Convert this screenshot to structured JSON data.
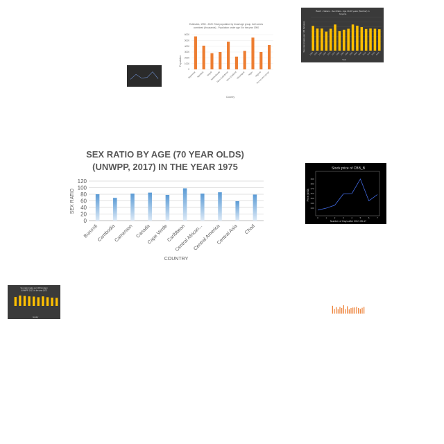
{
  "charts": [
    {
      "type": "bar",
      "title_line1": "SEX RATIO BY AGE (70 YEAR OLDS)",
      "title_line2": "(UNWPP, 2017) IN THE YEAR 1975",
      "xlabel": "COUNTRY",
      "ylabel": "SEX RATIO",
      "ylim": [
        0,
        120
      ],
      "yticks": [
        "0",
        "20",
        "40",
        "60",
        "80",
        "100",
        "120"
      ],
      "categories": [
        "Burundi",
        "Cambodia",
        "Cameroon",
        "Canada",
        "Cape Verde",
        "Caribbean",
        "Central African...",
        "Central America",
        "Central Asia",
        "Chad"
      ],
      "values": [
        80,
        69,
        82,
        85,
        78,
        98,
        82,
        86,
        59,
        79
      ],
      "color": "#5b9bd5"
    },
    {
      "type": "bar",
      "title_line1": "Estimates, 1950 - 2020: Total population by broad age group, both sexes",
      "title_line2": "combined (thousands) - Population under age 5 in the year 1950",
      "xlabel": "Country",
      "ylabel": "Population",
      "ylim": [
        0,
        6000
      ],
      "yticks": [
        "0",
        "1000",
        "2000",
        "3000",
        "4000",
        "5000",
        "6000"
      ],
      "categories": [
        "Myanmar",
        "Namibia",
        "Nepal",
        "Netherlands",
        "New Caledonia",
        "New Zealand",
        "Nicaragua",
        "Niger",
        "Nigeria",
        "No income group"
      ],
      "values": [
        5700,
        4100,
        2800,
        3000,
        4800,
        2200,
        3200,
        5500,
        3000,
        4200
      ],
      "color": "#ed7d31"
    },
    {
      "type": "bar",
      "title_line1": "Brazil - Nations - Sex Ratio - Age 10-40 years (Number) in",
      "title_line2": "Guyana",
      "xlabel": "Year",
      "ylabel": "Sex ratio (males per 100 females)",
      "ylim": [
        0,
        140
      ],
      "yticks": [],
      "categories": [
        "1950",
        "1955",
        "1960",
        "1965",
        "1970",
        "1975",
        "1980",
        "1985",
        "1990",
        "1995",
        "2000",
        "2005",
        "2010",
        "2015",
        "2020",
        "2025"
      ],
      "values": [
        104,
        93,
        93,
        80,
        92,
        110,
        82,
        88,
        92,
        110,
        105,
        99,
        91,
        93,
        92,
        90
      ],
      "color": "#ffc000"
    },
    {
      "type": "line",
      "title_line1": "Stock price of CBB_B",
      "title_line2": "",
      "xlabel": "Number of Days after 2017-05-17",
      "ylabel": "Price (USD)",
      "x": [
        0,
        1,
        2,
        3,
        4,
        5,
        6,
        7
      ],
      "values": [
        12.6,
        13.0,
        13.6,
        15.9,
        16.0,
        19.0,
        14.5,
        15.8
      ],
      "ylim": [
        12,
        20
      ],
      "yticks": [
        "13.0",
        "14.0",
        "15.0",
        "16.0",
        "17.0",
        "18.0",
        "19.0"
      ],
      "xticks": [
        "0",
        "1",
        "2",
        "3",
        "4",
        "5",
        "6",
        "7"
      ],
      "color": "#4169e1"
    },
    {
      "type": "bar",
      "title_line1": "Sex ratio (males per 100 females)",
      "title_line2": "(UNWPP, 2017) in the year 1975",
      "xlabel": "Country",
      "ylabel": "",
      "ylim": [
        0,
        120
      ],
      "yticks": [],
      "categories": [
        "A",
        "B",
        "C",
        "D",
        "E",
        "F",
        "G",
        "H",
        "I",
        "J"
      ],
      "values": [
        86,
        100,
        96,
        92,
        90,
        84,
        92,
        84,
        80,
        78
      ],
      "color": "#ffc000"
    },
    {
      "type": "bar",
      "title_line1": "",
      "title_line2": "",
      "xlabel": "",
      "ylabel": "",
      "ylim": [
        0,
        100
      ],
      "yticks": [],
      "categories": [
        "1",
        "2",
        "3",
        "4",
        "5",
        "6",
        "7",
        "8",
        "9",
        "10",
        "11",
        "12",
        "13",
        "14",
        "15",
        "16",
        "17",
        "18"
      ],
      "values": [
        70,
        42,
        58,
        40,
        60,
        50,
        75,
        40,
        66,
        38,
        50,
        54,
        55,
        60,
        50,
        42,
        52,
        60
      ],
      "color": "#ed7d31"
    },
    {
      "type": "line",
      "title_line1": "",
      "title_line2": "",
      "xlabel": "",
      "ylabel": "",
      "x": [
        0,
        1,
        2,
        3,
        4,
        5
      ],
      "values": [
        20,
        60,
        30,
        35,
        80,
        25
      ],
      "ylim": [
        0,
        100
      ],
      "yticks": [],
      "xticks": [],
      "color": "#6e8fcf"
    }
  ]
}
